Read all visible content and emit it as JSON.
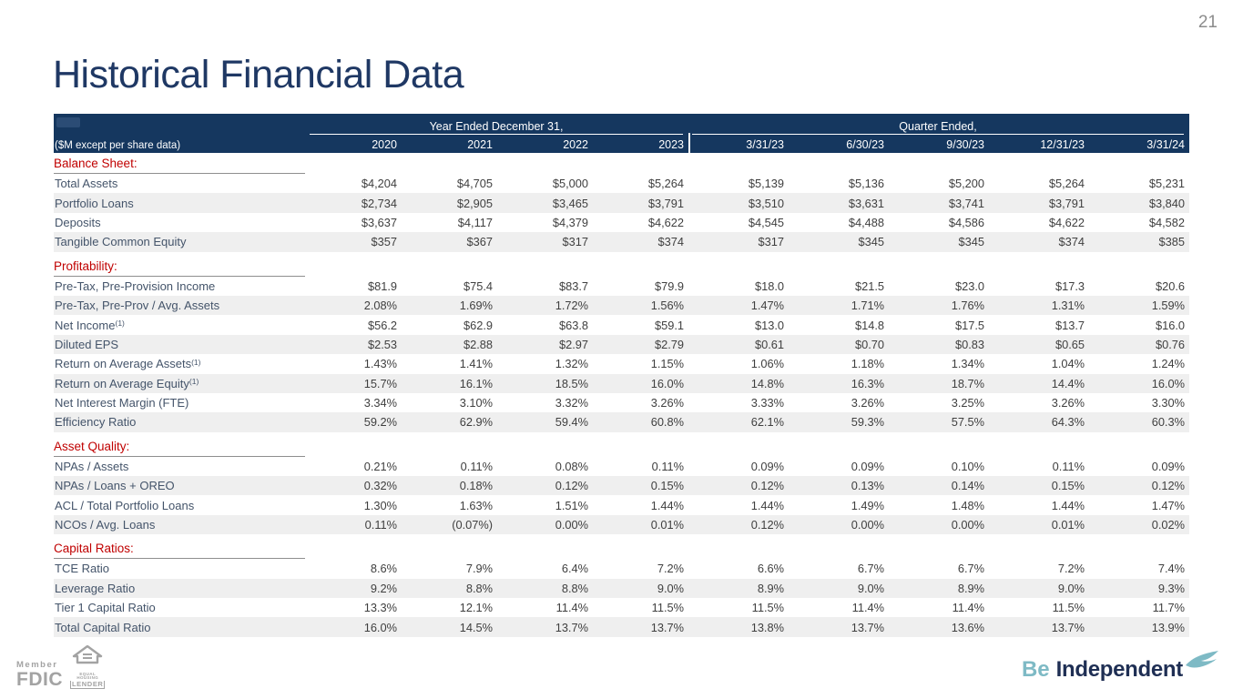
{
  "page_number": "21",
  "title": "Historical Financial Data",
  "colors": {
    "header_navy": "#15375F",
    "title_navy": "#1F3864",
    "section_red": "#C00000",
    "row_stripe": "#EFEFEF",
    "brand_teal": "#7EBAC5",
    "brand_navy": "#1F2F54"
  },
  "table": {
    "unit_label": "($M except per share data)",
    "groups": [
      {
        "label": "Year Ended December 31,",
        "columns": [
          "2020",
          "2021",
          "2022",
          "2023"
        ]
      },
      {
        "label": "Quarter Ended,",
        "columns": [
          "3/31/23",
          "6/30/23",
          "9/30/23",
          "12/31/23",
          "3/31/24"
        ]
      }
    ],
    "sections": [
      {
        "heading": "Balance Sheet:",
        "rows": [
          {
            "label": "Total Assets",
            "years": [
              "$4,204",
              "$4,705",
              "$5,000",
              "$5,264"
            ],
            "quarters": [
              "$5,139",
              "$5,136",
              "$5,200",
              "$5,264",
              "$5,231"
            ]
          },
          {
            "label": "Portfolio Loans",
            "years": [
              "$2,734",
              "$2,905",
              "$3,465",
              "$3,791"
            ],
            "quarters": [
              "$3,510",
              "$3,631",
              "$3,741",
              "$3,791",
              "$3,840"
            ]
          },
          {
            "label": "Deposits",
            "years": [
              "$3,637",
              "$4,117",
              "$4,379",
              "$4,622"
            ],
            "quarters": [
              "$4,545",
              "$4,488",
              "$4,586",
              "$4,622",
              "$4,582"
            ]
          },
          {
            "label": "Tangible Common Equity",
            "years": [
              "$357",
              "$367",
              "$317",
              "$374"
            ],
            "quarters": [
              "$317",
              "$345",
              "$345",
              "$374",
              "$385"
            ]
          }
        ]
      },
      {
        "heading": "Profitability:",
        "rows": [
          {
            "label": "Pre-Tax, Pre-Provision Income",
            "years": [
              "$81.9",
              "$75.4",
              "$83.7",
              "$79.9"
            ],
            "quarters": [
              "$18.0",
              "$21.5",
              "$23.0",
              "$17.3",
              "$20.6"
            ]
          },
          {
            "label": "Pre-Tax, Pre-Prov / Avg. Assets",
            "years": [
              "2.08%",
              "1.69%",
              "1.72%",
              "1.56%"
            ],
            "quarters": [
              "1.47%",
              "1.71%",
              "1.76%",
              "1.31%",
              "1.59%"
            ]
          },
          {
            "label": "Net Income",
            "sup": "(1)",
            "years": [
              "$56.2",
              "$62.9",
              "$63.8",
              "$59.1"
            ],
            "quarters": [
              "$13.0",
              "$14.8",
              "$17.5",
              "$13.7",
              "$16.0"
            ]
          },
          {
            "label": "Diluted EPS",
            "years": [
              "$2.53",
              "$2.88",
              "$2.97",
              "$2.79"
            ],
            "quarters": [
              "$0.61",
              "$0.70",
              "$0.83",
              "$0.65",
              "$0.76"
            ]
          },
          {
            "label": "Return on Average Assets",
            "sup": "(1)",
            "years": [
              "1.43%",
              "1.41%",
              "1.32%",
              "1.15%"
            ],
            "quarters": [
              "1.06%",
              "1.18%",
              "1.34%",
              "1.04%",
              "1.24%"
            ]
          },
          {
            "label": "Return on Average Equity",
            "sup": "(1)",
            "years": [
              "15.7%",
              "16.1%",
              "18.5%",
              "16.0%"
            ],
            "quarters": [
              "14.8%",
              "16.3%",
              "18.7%",
              "14.4%",
              "16.0%"
            ]
          },
          {
            "label": "Net Interest Margin (FTE)",
            "years": [
              "3.34%",
              "3.10%",
              "3.32%",
              "3.26%"
            ],
            "quarters": [
              "3.33%",
              "3.26%",
              "3.25%",
              "3.26%",
              "3.30%"
            ]
          },
          {
            "label": "Efficiency Ratio",
            "years": [
              "59.2%",
              "62.9%",
              "59.4%",
              "60.8%"
            ],
            "quarters": [
              "62.1%",
              "59.3%",
              "57.5%",
              "64.3%",
              "60.3%"
            ]
          }
        ]
      },
      {
        "heading": "Asset Quality:",
        "rows": [
          {
            "label": "NPAs / Assets",
            "years": [
              "0.21%",
              "0.11%",
              "0.08%",
              "0.11%"
            ],
            "quarters": [
              "0.09%",
              "0.09%",
              "0.10%",
              "0.11%",
              "0.09%"
            ]
          },
          {
            "label": "NPAs / Loans + OREO",
            "years": [
              "0.32%",
              "0.18%",
              "0.12%",
              "0.15%"
            ],
            "quarters": [
              "0.12%",
              "0.13%",
              "0.14%",
              "0.15%",
              "0.12%"
            ]
          },
          {
            "label": "ACL / Total Portfolio Loans",
            "years": [
              "1.30%",
              "1.63%",
              "1.51%",
              "1.44%"
            ],
            "quarters": [
              "1.44%",
              "1.49%",
              "1.48%",
              "1.44%",
              "1.47%"
            ]
          },
          {
            "label": "NCOs / Avg. Loans",
            "years": [
              "0.11%",
              "(0.07%)",
              "0.00%",
              "0.01%"
            ],
            "quarters": [
              "0.12%",
              "0.00%",
              "0.00%",
              "0.01%",
              "0.02%"
            ]
          }
        ]
      },
      {
        "heading": "Capital Ratios:",
        "rows": [
          {
            "label": "TCE Ratio",
            "years": [
              "8.6%",
              "7.9%",
              "6.4%",
              "7.2%"
            ],
            "quarters": [
              "6.6%",
              "6.7%",
              "6.7%",
              "7.2%",
              "7.4%"
            ]
          },
          {
            "label": "Leverage Ratio",
            "years": [
              "9.2%",
              "8.8%",
              "8.8%",
              "9.0%"
            ],
            "quarters": [
              "8.9%",
              "9.0%",
              "8.9%",
              "9.0%",
              "9.3%"
            ]
          },
          {
            "label": "Tier 1 Capital Ratio",
            "years": [
              "13.3%",
              "12.1%",
              "11.4%",
              "11.5%"
            ],
            "quarters": [
              "11.5%",
              "11.4%",
              "11.4%",
              "11.5%",
              "11.7%"
            ]
          },
          {
            "label": "Total Capital Ratio",
            "years": [
              "16.0%",
              "14.5%",
              "13.7%",
              "13.7%"
            ],
            "quarters": [
              "13.8%",
              "13.7%",
              "13.6%",
              "13.7%",
              "13.9%"
            ]
          }
        ]
      }
    ]
  },
  "footer": {
    "member_label": "Member",
    "fdic_label": "FDIC",
    "equal_housing_caption": "EQUAL HOUSING",
    "equal_housing_lender": "LENDER",
    "brand_prefix": "Be",
    "brand_name": "Independent"
  }
}
